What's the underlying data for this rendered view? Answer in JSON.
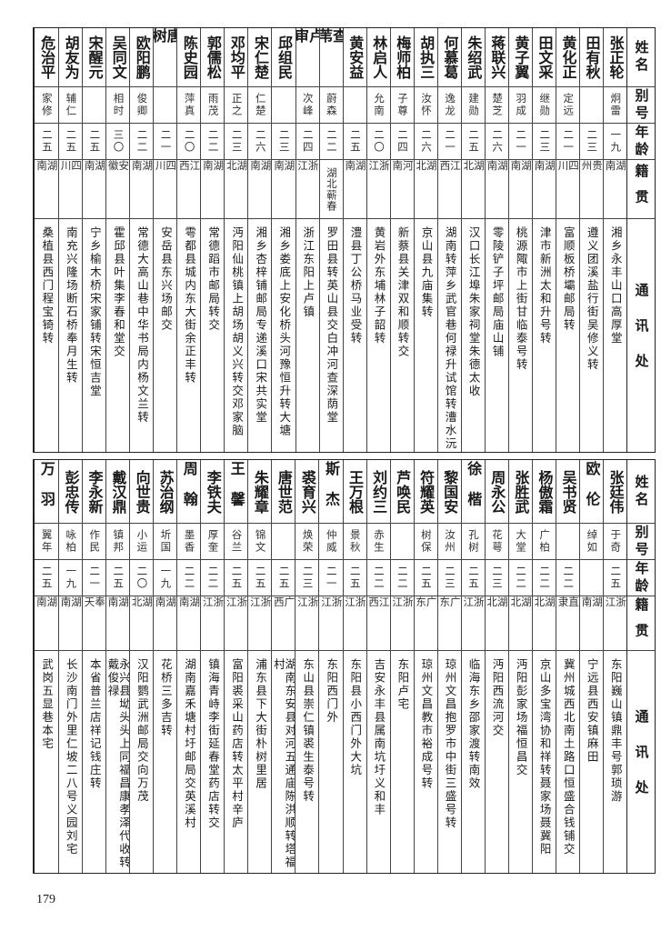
{
  "header": {
    "name": "姓名",
    "alias": "别号",
    "age": "年龄",
    "native": "籍贯",
    "address": "通讯处"
  },
  "top": {
    "rows": [
      {
        "name": "张正轮",
        "alias": "炯雷",
        "age": "一九",
        "native": "湖南",
        "address": "湘乡永丰山口高厚堂"
      },
      {
        "name": "田有秋",
        "alias": "",
        "age": "二三",
        "native": "贵州",
        "address": "遵义团溪盐行街吴修义转"
      },
      {
        "name": "黄化正",
        "alias": "定远",
        "age": "二一",
        "native": "四川",
        "address": "富顺板桥壩邮局转"
      },
      {
        "name": "田文采",
        "alias": "继勋",
        "age": "二三",
        "native": "湖南",
        "address": "津市新洲太和升号转"
      },
      {
        "name": "黄子翼",
        "alias": "羽成",
        "age": "二一",
        "native": "湖南",
        "address": "桃源陬市上街甘临泰号转"
      },
      {
        "name": "蒋联兴",
        "alias": "楚芝",
        "age": "二六",
        "native": "湖南",
        "address": "零陵铲子坪邮局庙山铺"
      },
      {
        "name": "朱绍武",
        "alias": "建勋",
        "age": "二五",
        "native": "湖北",
        "address": "汉口长江埠朱家祠堂朱德太收"
      },
      {
        "name": "何慕葛",
        "alias": "逸龙",
        "age": "二一",
        "native": "江西",
        "address": "湖南转萍乡武官巷何禄升试馆转漕水沅"
      },
      {
        "name": "胡执三",
        "alias": "汝怀",
        "age": "二六",
        "native": "湖北",
        "address": "京山县九庙集转"
      },
      {
        "name": "梅师柏",
        "alias": "子尊",
        "age": "二四",
        "native": "河南",
        "address": "新蔡县关津双和顺转交"
      },
      {
        "name": "林启人",
        "alias": "允南",
        "age": "二〇",
        "native": "浙江",
        "address": "黄岩外东埔林子韶转"
      },
      {
        "name": "黄安益",
        "alias": "",
        "age": "二五",
        "native": "湖南",
        "address": "澧县丁公桥马业受转"
      },
      {
        "name": "查苇",
        "alias": "蔚森",
        "age": "二二",
        "native": "湖北蕲春",
        "address": "罗田县转英山县交白冲河查深荫堂"
      },
      {
        "name": "卢审",
        "alias": "次峰",
        "age": "二四",
        "native": "浙江",
        "address": "浙江东阳上卢镇"
      },
      {
        "name": "邱组民",
        "alias": "",
        "age": "二三",
        "native": "湖南",
        "address": "湘乡娄底上安化桥头河豫恒升转大塘"
      },
      {
        "name": "宋仁楚",
        "alias": "仁楚",
        "age": "二六",
        "native": "湖南",
        "address": "湘乡杏梓铺邮局专递溪口宋共实堂"
      },
      {
        "name": "邓均平",
        "alias": "正之",
        "age": "二三",
        "native": "湖北",
        "address": "沔阳仙桃镇上胡场胡义兴转交邓家脑"
      },
      {
        "name": "郭儒松",
        "alias": "雨茂",
        "age": "二二",
        "native": "湖南",
        "address": "常德蹈市邮局转交"
      },
      {
        "name": "陈史园",
        "alias": "萍真",
        "age": "二〇",
        "native": "江西",
        "address": "雩都县城内东大街余正丰转"
      },
      {
        "name": "唐树",
        "alias": "",
        "age": "二一",
        "native": "四川",
        "address": "安岳县东兴场邮交"
      },
      {
        "name": "欧阳鹏",
        "alias": "俊卿",
        "age": "二二",
        "native": "湖南",
        "address": "常德大高山巷中华书局内杨文兰转"
      },
      {
        "name": "吴同文",
        "alias": "相时",
        "age": "三〇",
        "native": "安徽",
        "address": "霍邱县叶集李春和堂交"
      },
      {
        "name": "宋醒元",
        "alias": "",
        "age": "二五",
        "native": "湖南",
        "address": "宁乡榆木桥宋家铺转宋恒吉堂"
      },
      {
        "name": "胡友为",
        "alias": "辅仁",
        "age": "二五",
        "native": "四川",
        "address": "南充兴隆场断石桥奉月生转"
      },
      {
        "name": "危治平",
        "alias": "家修",
        "age": "二五",
        "native": "湖南",
        "address": "桑植县西门程宝锜转"
      }
    ]
  },
  "bottom": {
    "rows": [
      {
        "name": "张廷伟",
        "alias": "于奇",
        "age": "二五",
        "native": "浙江",
        "address": "东阳巍山镇鼎丰号郭琐游"
      },
      {
        "name": "欧伦",
        "alias": "绰如",
        "age": "",
        "native": "湖南",
        "address": "宁远县西安镇麻田"
      },
      {
        "name": "吴书贤",
        "alias": "",
        "age": "二二",
        "native": "直隶",
        "address": "冀州城西北南土路口恒盛合钱铺交"
      },
      {
        "name": "杨傲霜",
        "alias": "广柏",
        "age": "二二",
        "native": "湖北",
        "address": "京山多宝湾协和祥转聂家场聂冀阳"
      },
      {
        "name": "张胜武",
        "alias": "大堂",
        "age": "二二",
        "native": "湖北",
        "address": "沔阳彭家场福恒昌交"
      },
      {
        "name": "周永公",
        "alias": "花萼",
        "age": "二三",
        "native": "湖北",
        "address": "沔阳西流河交"
      },
      {
        "name": "徐楷",
        "alias": "孔树",
        "age": "二五",
        "native": "浙江",
        "address": "临海东乡邵家渡转南效"
      },
      {
        "name": "黎国安",
        "alias": "汝州",
        "age": "二三",
        "native": "广东",
        "address": "琼州文昌抱罗市中街三盛号转"
      },
      {
        "name": "符耀英",
        "alias": "树保",
        "age": "二五",
        "native": "广东",
        "address": "琼州文昌教市裕成号转"
      },
      {
        "name": "芦唤民",
        "alias": "",
        "age": "二二",
        "native": "浙江",
        "address": "东阳卢宅"
      },
      {
        "name": "刘约三",
        "alias": "赤生",
        "age": "二二",
        "native": "江西",
        "address": "吉安永丰县属南坑圩义和丰"
      },
      {
        "name": "王万根",
        "alias": "景秋",
        "age": "二五",
        "native": "浙江",
        "address": "东阳县小西门外大坑"
      },
      {
        "name": "斯杰",
        "alias": "仲威",
        "age": "二一",
        "native": "浙江",
        "address": "东阳西门外"
      },
      {
        "name": "裘育兴",
        "alias": "焕荣",
        "age": "二三",
        "native": "浙江",
        "address": "东山县崇仁镇裘生泰号转"
      },
      {
        "name": "唐世范",
        "alias": "",
        "age": "二五",
        "native": "广西",
        "address": "湖南东安县对河五通庙陈洪顺转塔福村"
      },
      {
        "name": "朱耀章",
        "alias": "锦文",
        "age": "二五",
        "native": "浙江",
        "address": "浦东县下大街朴树里居"
      },
      {
        "name": "王馨",
        "alias": "谷兰",
        "age": "二五",
        "native": "浙江",
        "address": "富阳裘采山药店转太平村辛庐"
      },
      {
        "name": "李铁夫",
        "alias": "厚奎",
        "age": "二二",
        "native": "浙江",
        "address": "镇海青峙李街延春堂药店转交"
      },
      {
        "name": "周翰",
        "alias": "墨香",
        "age": "二二",
        "native": "湖南",
        "address": "湖南嘉禾塘村圩邮局交英溪村"
      },
      {
        "name": "苏治纲",
        "alias": "圻国",
        "age": "一九",
        "native": "湖南",
        "address": "花桥三多吉转"
      },
      {
        "name": "向世贵",
        "alias": "小运",
        "age": "二〇",
        "native": "湖北",
        "address": "汉阳鹦武洲邮局交向万茂"
      },
      {
        "name": "戴汉鼎",
        "alias": "镇邦",
        "age": "二五",
        "native": "湖南",
        "address": "永兴县坳头头上同福昌康孝泽代收转戴俊禄"
      },
      {
        "name": "李永新",
        "alias": "作民",
        "age": "二一",
        "native": "奉天",
        "address": "本省普兰店祥记钱庄转"
      },
      {
        "name": "彭忠传",
        "alias": "咏柏",
        "age": "一九",
        "native": "湖南",
        "address": "长沙南门外里仁坡二八号义园刘宅"
      },
      {
        "name": "万羽",
        "alias": "翼年",
        "age": "二五",
        "native": "湖南",
        "address": "武岗五显巷本宅"
      }
    ]
  },
  "page_number": "179"
}
